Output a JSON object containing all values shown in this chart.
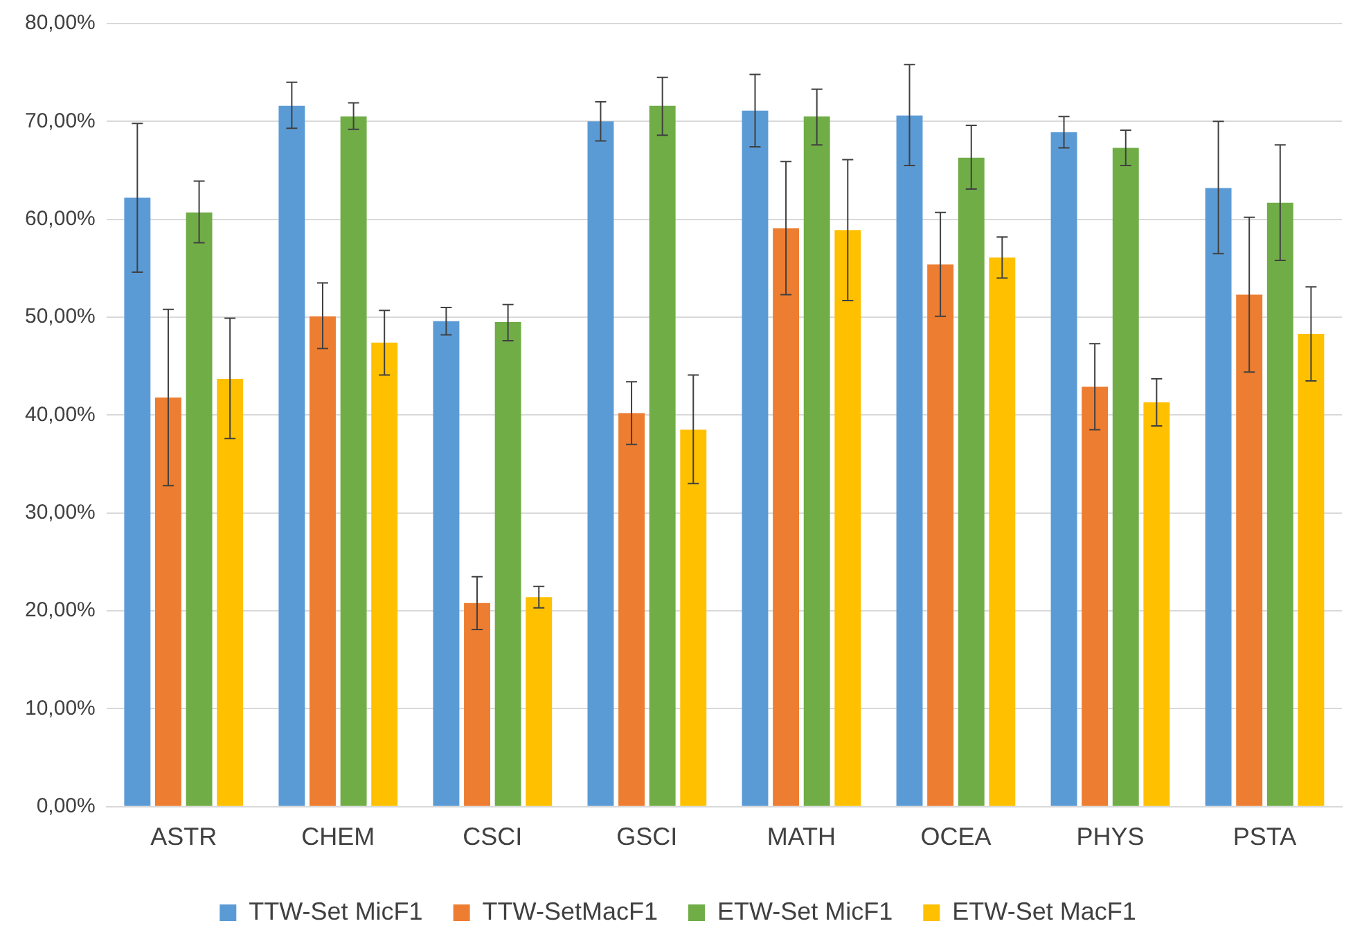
{
  "chart_data": {
    "type": "bar",
    "categories": [
      "ASTR",
      "CHEM",
      "CSCI",
      "GSCI",
      "MATH",
      "OCEA",
      "PHYS",
      "PSTA"
    ],
    "series": [
      {
        "name": "TTW-Set MicF1",
        "color": "#5b9bd5",
        "values": [
          62.2,
          71.6,
          49.6,
          70.0,
          71.1,
          70.6,
          68.9,
          63.2
        ],
        "errors": [
          [
            54.6,
            69.8
          ],
          [
            69.3,
            74.0
          ],
          [
            48.2,
            51.0
          ],
          [
            68.0,
            72.0
          ],
          [
            67.4,
            74.8
          ],
          [
            65.5,
            75.8
          ],
          [
            67.3,
            70.5
          ],
          [
            56.5,
            70.0
          ]
        ]
      },
      {
        "name": "TTW-SetMacF1",
        "color": "#ed7d31",
        "values": [
          41.8,
          50.1,
          20.8,
          40.2,
          59.1,
          55.4,
          42.9,
          52.3
        ],
        "errors": [
          [
            32.8,
            50.8
          ],
          [
            46.8,
            53.5
          ],
          [
            18.1,
            23.5
          ],
          [
            37.0,
            43.4
          ],
          [
            52.3,
            65.9
          ],
          [
            50.1,
            60.7
          ],
          [
            38.5,
            47.3
          ],
          [
            44.4,
            60.2
          ]
        ]
      },
      {
        "name": "ETW-Set MicF1",
        "color": "#70ad47",
        "values": [
          60.7,
          70.5,
          49.5,
          71.6,
          70.5,
          66.3,
          67.3,
          61.7
        ],
        "errors": [
          [
            57.6,
            63.9
          ],
          [
            69.2,
            71.9
          ],
          [
            47.6,
            51.3
          ],
          [
            68.6,
            74.5
          ],
          [
            67.6,
            73.3
          ],
          [
            63.1,
            69.6
          ],
          [
            65.5,
            69.1
          ],
          [
            55.8,
            67.6
          ]
        ]
      },
      {
        "name": "ETW-Set MacF1",
        "color": "#ffc000",
        "values": [
          43.7,
          47.4,
          21.4,
          38.5,
          58.9,
          56.1,
          41.3,
          48.3
        ],
        "errors": [
          [
            37.6,
            49.9
          ],
          [
            44.1,
            50.7
          ],
          [
            20.3,
            22.5
          ],
          [
            33.0,
            44.1
          ],
          [
            51.7,
            66.1
          ],
          [
            54.0,
            58.2
          ],
          [
            38.9,
            43.7
          ],
          [
            43.5,
            53.1
          ]
        ]
      }
    ],
    "ylim": [
      0,
      80
    ],
    "yticks": [
      {
        "value": 0,
        "label": "0,00%"
      },
      {
        "value": 10,
        "label": "10,00%"
      },
      {
        "value": 20,
        "label": "20,00%"
      },
      {
        "value": 30,
        "label": "30,00%"
      },
      {
        "value": 40,
        "label": "40,00%"
      },
      {
        "value": 50,
        "label": "50,00%"
      },
      {
        "value": 60,
        "label": "60,00%"
      },
      {
        "value": 70,
        "label": "70,00%"
      },
      {
        "value": 80,
        "label": "80,00%"
      }
    ],
    "grid": "y",
    "legend": "bottom"
  }
}
